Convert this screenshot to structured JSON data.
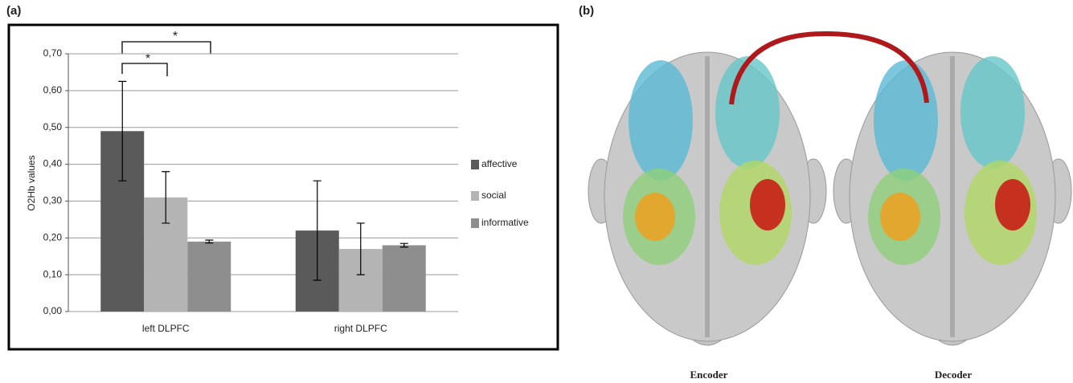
{
  "chart_data": {
    "type": "bar",
    "panel_labels": [
      "(a)",
      "(b)"
    ],
    "y_label": "O2Hb values",
    "categories": [
      "left DLPFC",
      "right DLPFC"
    ],
    "series": [
      {
        "name": "affective",
        "color": "#5a5a5a",
        "values": [
          0.49,
          0.22
        ],
        "errors": [
          0.135,
          0.135
        ]
      },
      {
        "name": "social",
        "color": "#b4b4b4",
        "values": [
          0.31,
          0.17
        ],
        "errors": [
          0.07,
          0.07
        ]
      },
      {
        "name": "informative",
        "color": "#8e8e8e",
        "values": [
          0.19,
          0.18
        ],
        "errors": [
          0.004,
          0.005
        ]
      }
    ],
    "ylim": [
      0,
      0.7
    ],
    "yticks": [
      {
        "value": 0,
        "label": "0,00"
      },
      {
        "value": 0.1,
        "label": "0,10"
      },
      {
        "value": 0.2,
        "label": "0,20"
      },
      {
        "value": 0.3,
        "label": "0,30"
      },
      {
        "value": 0.4,
        "label": "0,40"
      },
      {
        "value": 0.5,
        "label": "0,50"
      },
      {
        "value": 0.6,
        "label": "0,60"
      },
      {
        "value": 0.7,
        "label": "0,70"
      }
    ],
    "grid": true,
    "legend": "right",
    "annotations": [
      "*",
      "*"
    ],
    "image_labels": [
      "Encoder",
      "Decoder"
    ]
  }
}
